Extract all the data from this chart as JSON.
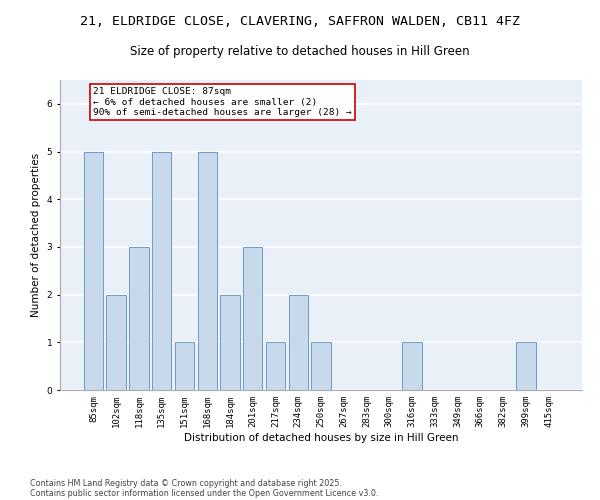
{
  "title_line1": "21, ELDRIDGE CLOSE, CLAVERING, SAFFRON WALDEN, CB11 4FZ",
  "title_line2": "Size of property relative to detached houses in Hill Green",
  "xlabel": "Distribution of detached houses by size in Hill Green",
  "ylabel": "Number of detached properties",
  "categories": [
    "85sqm",
    "102sqm",
    "118sqm",
    "135sqm",
    "151sqm",
    "168sqm",
    "184sqm",
    "201sqm",
    "217sqm",
    "234sqm",
    "250sqm",
    "267sqm",
    "283sqm",
    "300sqm",
    "316sqm",
    "333sqm",
    "349sqm",
    "366sqm",
    "382sqm",
    "399sqm",
    "415sqm"
  ],
  "values": [
    5,
    2,
    3,
    5,
    1,
    5,
    2,
    3,
    1,
    2,
    1,
    0,
    0,
    0,
    1,
    0,
    0,
    0,
    0,
    1,
    0
  ],
  "bar_color": "#c9d9ec",
  "bar_edgecolor": "#5b8fc9",
  "annotation_text": "21 ELDRIDGE CLOSE: 87sqm\n← 6% of detached houses are smaller (2)\n90% of semi-detached houses are larger (28) →",
  "annotation_box_edgecolor": "#cc0000",
  "annotation_box_facecolor": "#ffffff",
  "ylim": [
    0,
    6.5
  ],
  "yticks": [
    0,
    1,
    2,
    3,
    4,
    5,
    6
  ],
  "background_color": "#eaf0f8",
  "grid_color": "#ffffff",
  "footer_line1": "Contains HM Land Registry data © Crown copyright and database right 2025.",
  "footer_line2": "Contains public sector information licensed under the Open Government Licence v3.0.",
  "title_fontsize": 9.5,
  "subtitle_fontsize": 8.5,
  "label_fontsize": 7.5,
  "tick_fontsize": 6.5,
  "annotation_fontsize": 6.8,
  "footer_fontsize": 5.8
}
